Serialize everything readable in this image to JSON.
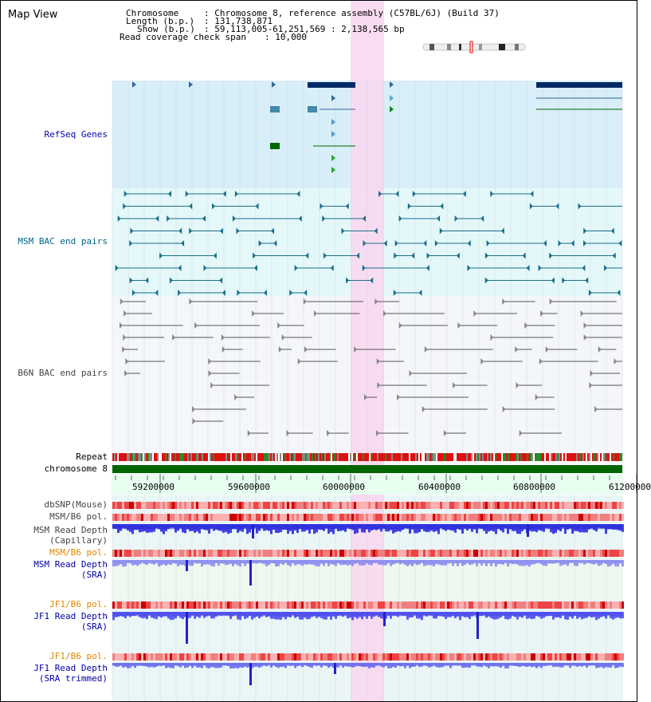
{
  "page": {
    "title": "Map View"
  },
  "header": {
    "chromosome_label": "Chromosome",
    "chromosome_value": ": Chromosome 8, reference assembly (C57BL/6J) (Build 37)",
    "length_label": "Length (b.p.)",
    "length_value": ": 131,738,871",
    "show_label": "Show (b.p.)",
    "show_value": ": 59,113,005-61,251,569 : 2,138,565 bp",
    "span_label": "Read coverage check span",
    "span_value": ": 10,000"
  },
  "tracks": {
    "refseq": {
      "label": "RefSeq Genes",
      "color": "#0000aa"
    },
    "msm_bac": {
      "label": "MSM BAC end pairs",
      "color": "#006688"
    },
    "b6n_bac": {
      "label": "B6N BAC end pairs",
      "color": "#444444"
    },
    "repeat": {
      "label": "Repeat"
    },
    "chromosome": {
      "label": "chromosome 8"
    },
    "dbsnp": {
      "label": "dbSNP(Mouse)"
    },
    "msm_b6_pol_1": {
      "label": "MSM/B6 pol."
    },
    "msm_depth_cap": {
      "label": "MSM Read Depth",
      "sub": "(Capillary)"
    },
    "msm_b6_pol_2": {
      "label": "MSM/B6 pol.",
      "color": "#dd8800"
    },
    "msm_depth_sra": {
      "label": "MSM Read Depth",
      "sub": "(SRA)",
      "color": "#0000aa"
    },
    "jf1_b6_pol_1": {
      "label": "JF1/B6 pol.",
      "color": "#dd8800"
    },
    "jf1_depth_sra": {
      "label": "JF1 Read Depth",
      "sub": "(SRA)",
      "color": "#0000aa"
    },
    "jf1_b6_pol_2": {
      "label": "JF1/B6 pol.",
      "color": "#dd8800"
    },
    "jf1_depth_trim": {
      "label": "JF1 Read Depth",
      "sub": "(SRA trimmed)",
      "color": "#0000aa"
    }
  },
  "axis": {
    "ticks": [
      "59200000",
      "59600000",
      "60000000",
      "60400000",
      "60800000",
      "61200000"
    ]
  },
  "colors": {
    "refseq_bg": "#d8eef8",
    "msm_bg": "#e4f8fa",
    "b6n_bg": "#f4f6fa",
    "highlight": "#f8d8f0",
    "chrom_bar": "#006600",
    "depth_blue": "#3333ee"
  }
}
